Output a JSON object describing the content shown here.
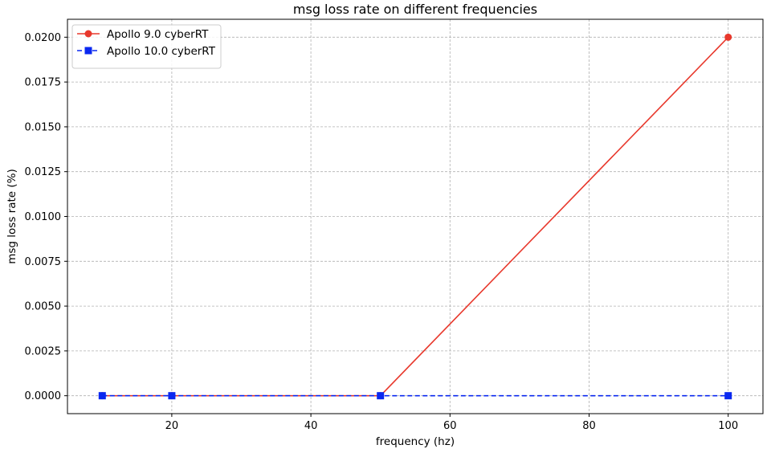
{
  "chart_data": {
    "type": "line",
    "title": "msg loss rate on different frequencies",
    "xlabel": "frequency (hz)",
    "ylabel": "msg loss rate (%)",
    "xlim": [
      5,
      105
    ],
    "ylim": [
      -0.001,
      0.021
    ],
    "xticks": [
      20,
      40,
      60,
      80,
      100
    ],
    "yticks": [
      0.0,
      0.0025,
      0.005,
      0.0075,
      0.01,
      0.0125,
      0.015,
      0.0175,
      0.02
    ],
    "xtick_labels": [
      "20",
      "40",
      "60",
      "80",
      "100"
    ],
    "ytick_labels": [
      "0.0000",
      "0.0025",
      "0.0050",
      "0.0075",
      "0.0100",
      "0.0125",
      "0.0150",
      "0.0175",
      "0.0200"
    ],
    "grid": true,
    "legend_position": "top-left",
    "series": [
      {
        "name": "Apollo 9.0 cyberRT",
        "x": [
          10,
          20,
          50,
          100
        ],
        "y": [
          0.0,
          0.0,
          0.0,
          0.02
        ],
        "color": "#e8382c",
        "marker": "circle",
        "linestyle": "solid"
      },
      {
        "name": "Apollo 10.0 cyberRT",
        "x": [
          10,
          20,
          50,
          100
        ],
        "y": [
          0.0,
          0.0,
          0.0,
          0.0
        ],
        "color": "#0a28f0",
        "marker": "square",
        "linestyle": "dashed"
      }
    ]
  }
}
